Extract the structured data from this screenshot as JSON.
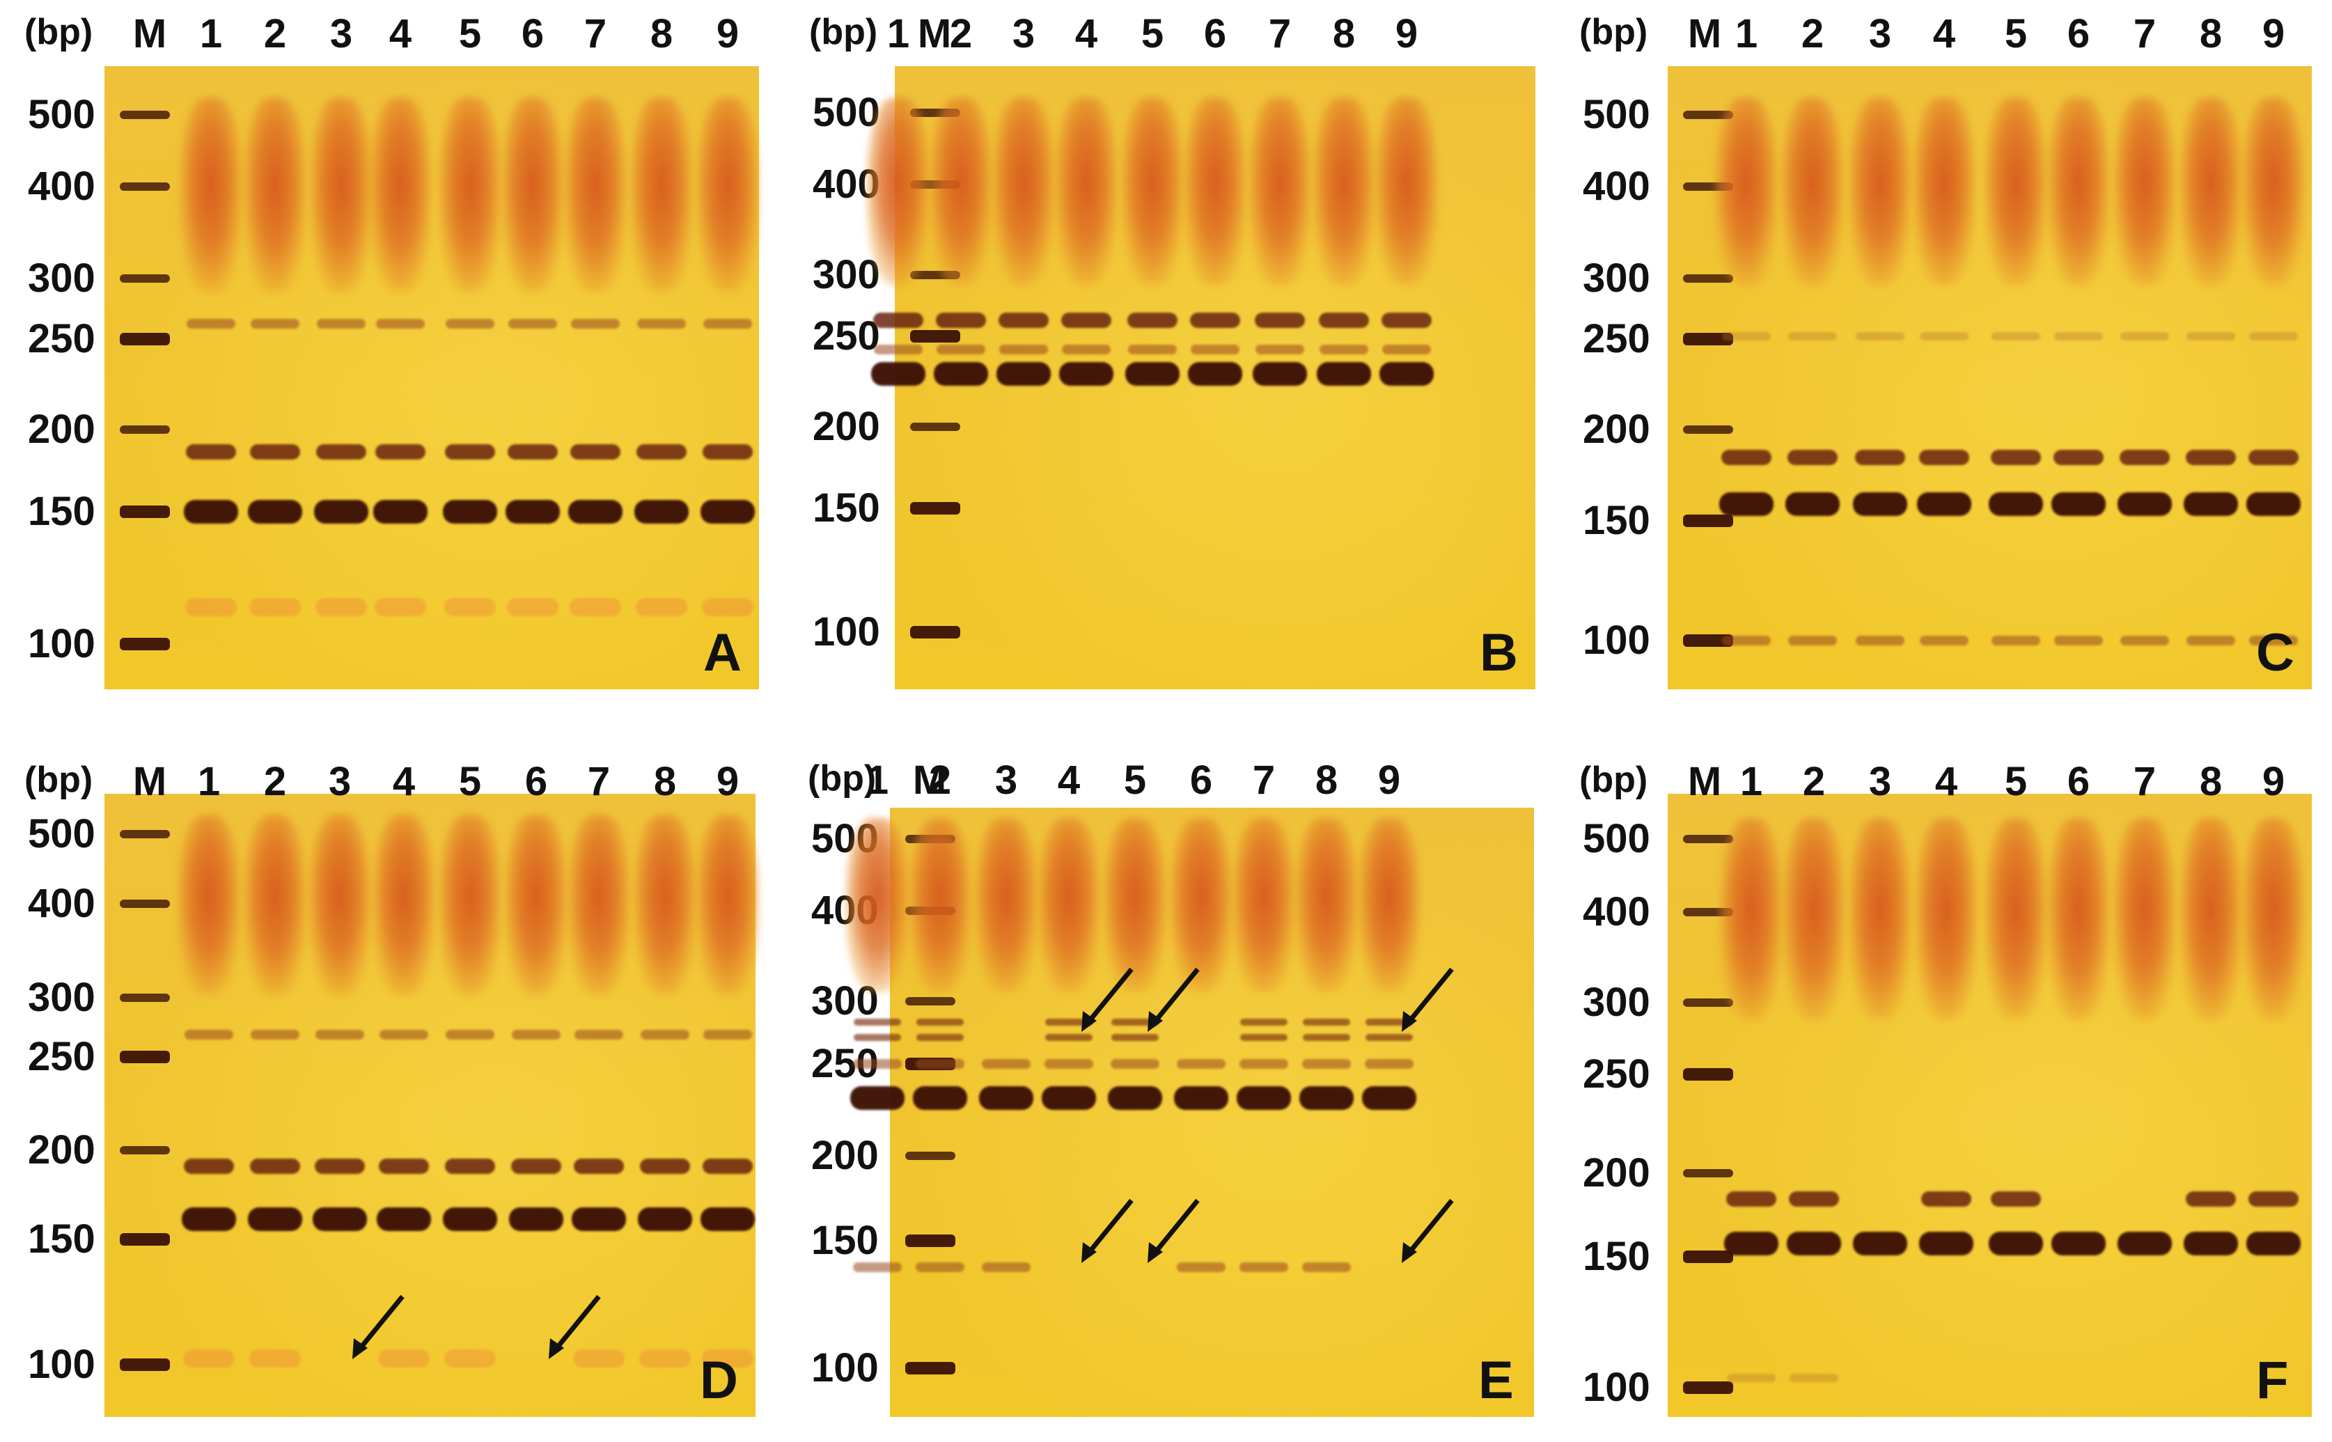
{
  "figure": {
    "bp_unit": "(bp)",
    "marker_label": "M",
    "lane_labels": [
      "1",
      "2",
      "3",
      "4",
      "5",
      "6",
      "7",
      "8",
      "9"
    ],
    "ladder_sizes": [
      "500",
      "400",
      "300",
      "250",
      "200",
      "150",
      "100"
    ],
    "panels": [
      {
        "letter": "A",
        "bands": [
          {
            "size_bp": 262,
            "intensity": "faint",
            "lanes": "all"
          },
          {
            "size_bp": 185,
            "intensity": "medium",
            "lanes": "all"
          },
          {
            "size_bp": 150,
            "intensity": "strong",
            "lanes": "all"
          },
          {
            "size_bp": 112,
            "intensity": "faint-orange",
            "lanes": "all"
          }
        ],
        "arrows": []
      },
      {
        "letter": "B",
        "bands": [
          {
            "size_bp": 262,
            "intensity": "medium",
            "lanes": "all"
          },
          {
            "size_bp": 242,
            "intensity": "faint",
            "lanes": "all"
          },
          {
            "size_bp": 228,
            "intensity": "strong",
            "lanes": "all"
          }
        ],
        "arrows": []
      },
      {
        "letter": "C",
        "bands": [
          {
            "size_bp": 252,
            "intensity": "very-faint",
            "lanes": "all"
          },
          {
            "size_bp": 183,
            "intensity": "medium",
            "lanes": "all"
          },
          {
            "size_bp": 158,
            "intensity": "strong",
            "lanes": "all"
          },
          {
            "size_bp": 99,
            "intensity": "faint",
            "lanes": "all"
          }
        ],
        "arrows": []
      },
      {
        "letter": "D",
        "bands": [
          {
            "size_bp": 268,
            "intensity": "faint",
            "lanes": "all"
          },
          {
            "size_bp": 190,
            "intensity": "medium",
            "lanes": "all"
          },
          {
            "size_bp": 160,
            "intensity": "strong",
            "lanes": "all"
          },
          {
            "size_bp": 102,
            "intensity": "faint-orange",
            "lanes": "all except 3 and 6"
          }
        ],
        "arrows": [
          {
            "lane": "3",
            "size_bp": 102
          },
          {
            "lane": "6",
            "size_bp": 102
          }
        ]
      },
      {
        "letter": "E",
        "bands": [
          {
            "size_bp": 270,
            "intensity": "faint-doublet",
            "lanes": "1,2,4,5,7,8,9"
          },
          {
            "size_bp": 250,
            "intensity": "faint",
            "lanes": "all"
          },
          {
            "size_bp": 230,
            "intensity": "strong",
            "lanes": "all"
          },
          {
            "size_bp": 138,
            "intensity": "faint",
            "lanes": "1,2,3,6,7,8"
          }
        ],
        "arrows": [
          {
            "lane": "4",
            "size_bp": 275
          },
          {
            "lane": "5",
            "size_bp": 275
          },
          {
            "lane": "9",
            "size_bp": 275
          },
          {
            "lane": "4",
            "size_bp": 140
          },
          {
            "lane": "5",
            "size_bp": 140
          },
          {
            "lane": "9",
            "size_bp": 140
          }
        ]
      },
      {
        "letter": "F",
        "bands": [
          {
            "size_bp": 183,
            "intensity": "medium",
            "lanes": "1,2,4,5,8,9"
          },
          {
            "size_bp": 157,
            "intensity": "strong",
            "lanes": "all"
          },
          {
            "size_bp": 103,
            "intensity": "very-faint",
            "lanes": "1,2"
          }
        ],
        "arrows": []
      }
    ]
  },
  "colors": {
    "gel_background": "#f0c431",
    "sample_smear": "#d6581c",
    "dna_band": "#4a1608",
    "ladder_band": "#3a1206",
    "arrow": "#111111"
  }
}
